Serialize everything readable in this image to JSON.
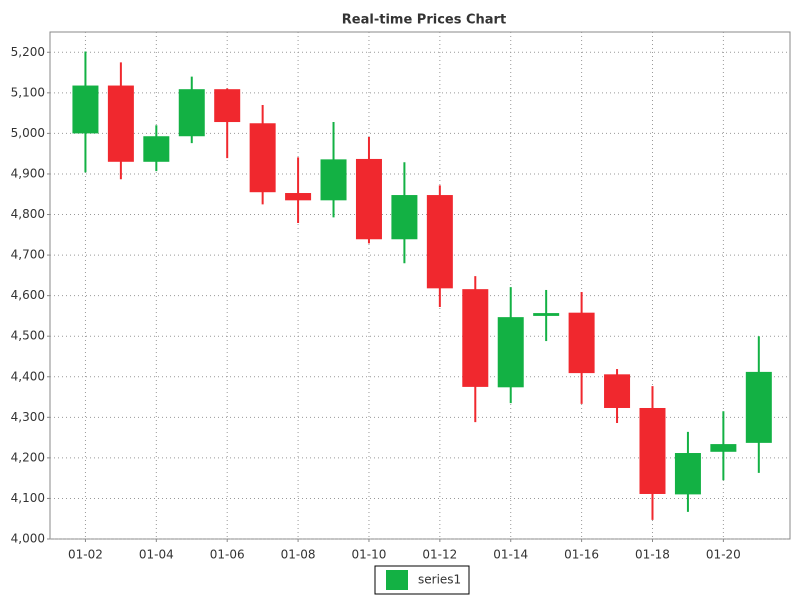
{
  "chart_data": {
    "type": "candlestick",
    "title": "Real-time Prices Chart",
    "categories": [
      "01-02",
      null,
      "01-04",
      null,
      "01-06",
      null,
      "01-08",
      null,
      "01-10",
      null,
      "01-12",
      null,
      "01-14",
      null,
      "01-16",
      null,
      "01-18",
      null,
      "01-20",
      null
    ],
    "series": [
      {
        "name": "series1",
        "color": "#13b144",
        "down_color": "#f0282e",
        "open": [
          5000,
          5118,
          4930,
          4993,
          5109,
          5025,
          4853,
          4835,
          4937,
          4739,
          4848,
          4616,
          4374,
          4550,
          4558,
          4406,
          4323,
          4110,
          4215,
          4237
        ],
        "high": [
          5202,
          5175,
          5020,
          5140,
          5111,
          5070,
          4941,
          5028,
          4991,
          4929,
          4872,
          4648,
          4621,
          4614,
          4609,
          4419,
          4377,
          4264,
          4315,
          4500
        ],
        "low": [
          4904,
          4887,
          4907,
          4976,
          4939,
          4825,
          4779,
          4793,
          4729,
          4680,
          4572,
          4288,
          4335,
          4488,
          4333,
          4286,
          4047,
          4067,
          4145,
          4163
        ],
        "close": [
          5118,
          4930,
          4993,
          5109,
          5028,
          4855,
          4835,
          4936,
          4739,
          4848,
          4618,
          4375,
          4547,
          4557,
          4409,
          4323,
          4111,
          4212,
          4234,
          4412
        ]
      }
    ],
    "ylim": [
      4000,
      5250
    ],
    "yticks": [
      {
        "value": 4000,
        "label": "4,000"
      },
      {
        "value": 4100,
        "label": "4,100"
      },
      {
        "value": 4200,
        "label": "4,200"
      },
      {
        "value": 4300,
        "label": "4,300"
      },
      {
        "value": 4400,
        "label": "4,400"
      },
      {
        "value": 4500,
        "label": "4,500"
      },
      {
        "value": 4600,
        "label": "4,600"
      },
      {
        "value": 4700,
        "label": "4,700"
      },
      {
        "value": 4800,
        "label": "4,800"
      },
      {
        "value": 4900,
        "label": "4,900"
      },
      {
        "value": 5000,
        "label": "5,000"
      },
      {
        "value": 5100,
        "label": "5,100"
      },
      {
        "value": 5200,
        "label": "5,200"
      }
    ],
    "grid": true,
    "legend": "bottom"
  }
}
